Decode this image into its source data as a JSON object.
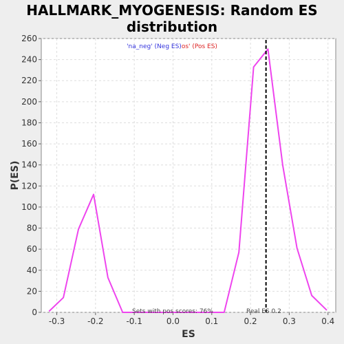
{
  "chart_data": {
    "type": "line",
    "title": "HALLMARK_MYOGENESIS: Random ES distribution",
    "title_lines": [
      "HALLMARK_MYOGENESIS: Random ES",
      "distribution"
    ],
    "xlabel": "ES",
    "ylabel": "P(ES)",
    "xlim": [
      -0.34,
      0.42
    ],
    "ylim": [
      0,
      260
    ],
    "xticks": [
      -0.3,
      -0.2,
      -0.1,
      0.0,
      0.1,
      0.2,
      0.3,
      0.4
    ],
    "xtick_labels": [
      "-0.3",
      "-0.2",
      "-0.1",
      "0.0",
      "0.1",
      "0.2",
      "0.3",
      "0.4"
    ],
    "yticks": [
      0,
      20,
      40,
      60,
      80,
      100,
      120,
      140,
      160,
      180,
      200,
      220,
      240,
      260
    ],
    "ytick_labels": [
      "0",
      "20",
      "40",
      "60",
      "80",
      "100",
      "120",
      "140",
      "160",
      "180",
      "200",
      "220",
      "240",
      "260"
    ],
    "grid": true,
    "series": [
      {
        "color": "#ee44ee",
        "x": [
          -0.32,
          -0.283,
          -0.244,
          -0.205,
          -0.168,
          -0.13,
          -0.093,
          -0.055,
          -0.018,
          0.02,
          0.057,
          0.095,
          0.132,
          0.17,
          0.208,
          0.245,
          0.283,
          0.32,
          0.358,
          0.397
        ],
        "y": [
          1,
          14,
          79,
          112,
          33,
          0,
          0,
          0,
          0,
          0,
          0,
          0,
          0,
          57,
          233,
          250,
          140,
          61,
          16,
          2
        ]
      }
    ],
    "legend": {
      "position": "top-center",
      "neg_text": "'na_neg' (Neg ES)",
      "pos_text": "os' (Pos ES)",
      "neg_color": "#3333dd",
      "pos_color": "#dd2222"
    },
    "real_es": {
      "value": 0.24,
      "label": "Real ES 0.2",
      "color": "#000000"
    },
    "annotation": "Sets with pos scores: 76%"
  }
}
